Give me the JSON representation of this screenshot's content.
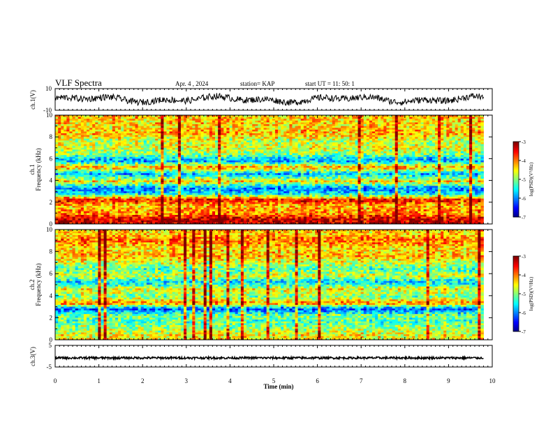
{
  "header": {
    "title": "VLF Spectra",
    "date": "Apr. 4 , 2024",
    "station": "station= KAP",
    "start": "start  UT =   11: 50: 1"
  },
  "chart_data": [
    {
      "type": "line",
      "panel": "ch1-waveform",
      "ylabel": "ch.1(V)",
      "xlim": [
        0,
        10
      ],
      "ylim": [
        -10,
        10
      ],
      "yticks": [
        "10",
        "-10"
      ],
      "description_values": "noisy waveform centered near 0 V, amplitude about +/-5 V"
    },
    {
      "type": "heatmap",
      "panel": "ch1-spectrogram",
      "ylabel": "ch.1 Frequency (kHz)",
      "ylim": [
        0,
        10
      ],
      "yticks": [
        "0",
        "2",
        "4",
        "6",
        "8",
        "10"
      ],
      "xlim": [
        0,
        9.8
      ],
      "colorbar": {
        "label": "log(PSD)(V²/Hz)",
        "ticks": [
          "-3",
          "-4",
          "-5",
          "-6",
          "-7"
        ],
        "range": [
          -7,
          -3
        ]
      },
      "bands": [
        {
          "f": 0.4,
          "v": -3.3
        },
        {
          "f": 0.9,
          "v": -4.0
        },
        {
          "f": 1.7,
          "v": -4.3
        },
        {
          "f": 2.2,
          "v": -3.5
        },
        {
          "f": 2.8,
          "v": -5.6
        },
        {
          "f": 3.3,
          "v": -6.0
        },
        {
          "f": 3.9,
          "v": -4.4
        },
        {
          "f": 4.6,
          "v": -5.8
        },
        {
          "f": 5.2,
          "v": -4.1
        },
        {
          "f": 5.8,
          "v": -5.9
        },
        {
          "f": 6.4,
          "v": -5.0
        },
        {
          "f": 7.0,
          "v": -4.6
        },
        {
          "f": 7.6,
          "v": -4.8
        },
        {
          "f": 8.3,
          "v": -4.2
        },
        {
          "f": 9.0,
          "v": -4.4
        },
        {
          "f": 9.6,
          "v": -4.3
        }
      ]
    },
    {
      "type": "heatmap",
      "panel": "ch2-spectrogram",
      "ylabel": "ch.2 Frequency (kHz)",
      "ylim": [
        0,
        10
      ],
      "yticks": [
        "0",
        "2",
        "4",
        "6",
        "8",
        "10"
      ],
      "xlim": [
        0,
        9.8
      ],
      "colorbar": {
        "label": "log(PSD)(V²/Hz)",
        "ticks": [
          "-3",
          "-4",
          "-5",
          "-6",
          "-7"
        ],
        "range": [
          -7,
          -3
        ]
      },
      "bands": [
        {
          "f": 0.4,
          "v": -4.5
        },
        {
          "f": 0.9,
          "v": -4.8
        },
        {
          "f": 1.7,
          "v": -5.2
        },
        {
          "f": 2.2,
          "v": -5.0
        },
        {
          "f": 2.8,
          "v": -6.2
        },
        {
          "f": 3.3,
          "v": -4.0
        },
        {
          "f": 3.9,
          "v": -5.0
        },
        {
          "f": 4.6,
          "v": -4.5
        },
        {
          "f": 5.2,
          "v": -5.7
        },
        {
          "f": 5.8,
          "v": -4.6
        },
        {
          "f": 6.4,
          "v": -5.2
        },
        {
          "f": 7.0,
          "v": -4.7
        },
        {
          "f": 7.6,
          "v": -4.2
        },
        {
          "f": 8.3,
          "v": -4.4
        },
        {
          "f": 9.0,
          "v": -3.9
        },
        {
          "f": 9.6,
          "v": -4.3
        }
      ]
    },
    {
      "type": "line",
      "panel": "ch3-waveform",
      "ylabel": "ch.3(V)",
      "xlim": [
        0,
        10
      ],
      "ylim": [
        -5,
        5
      ],
      "yticks": [
        "5",
        "-5"
      ],
      "description_values": "constant offset near -0.8 V with small noise"
    }
  ],
  "xaxis": {
    "label": "Time (min)",
    "ticks": [
      "0",
      "1",
      "2",
      "3",
      "4",
      "5",
      "6",
      "7",
      "8",
      "9",
      "10"
    ]
  }
}
